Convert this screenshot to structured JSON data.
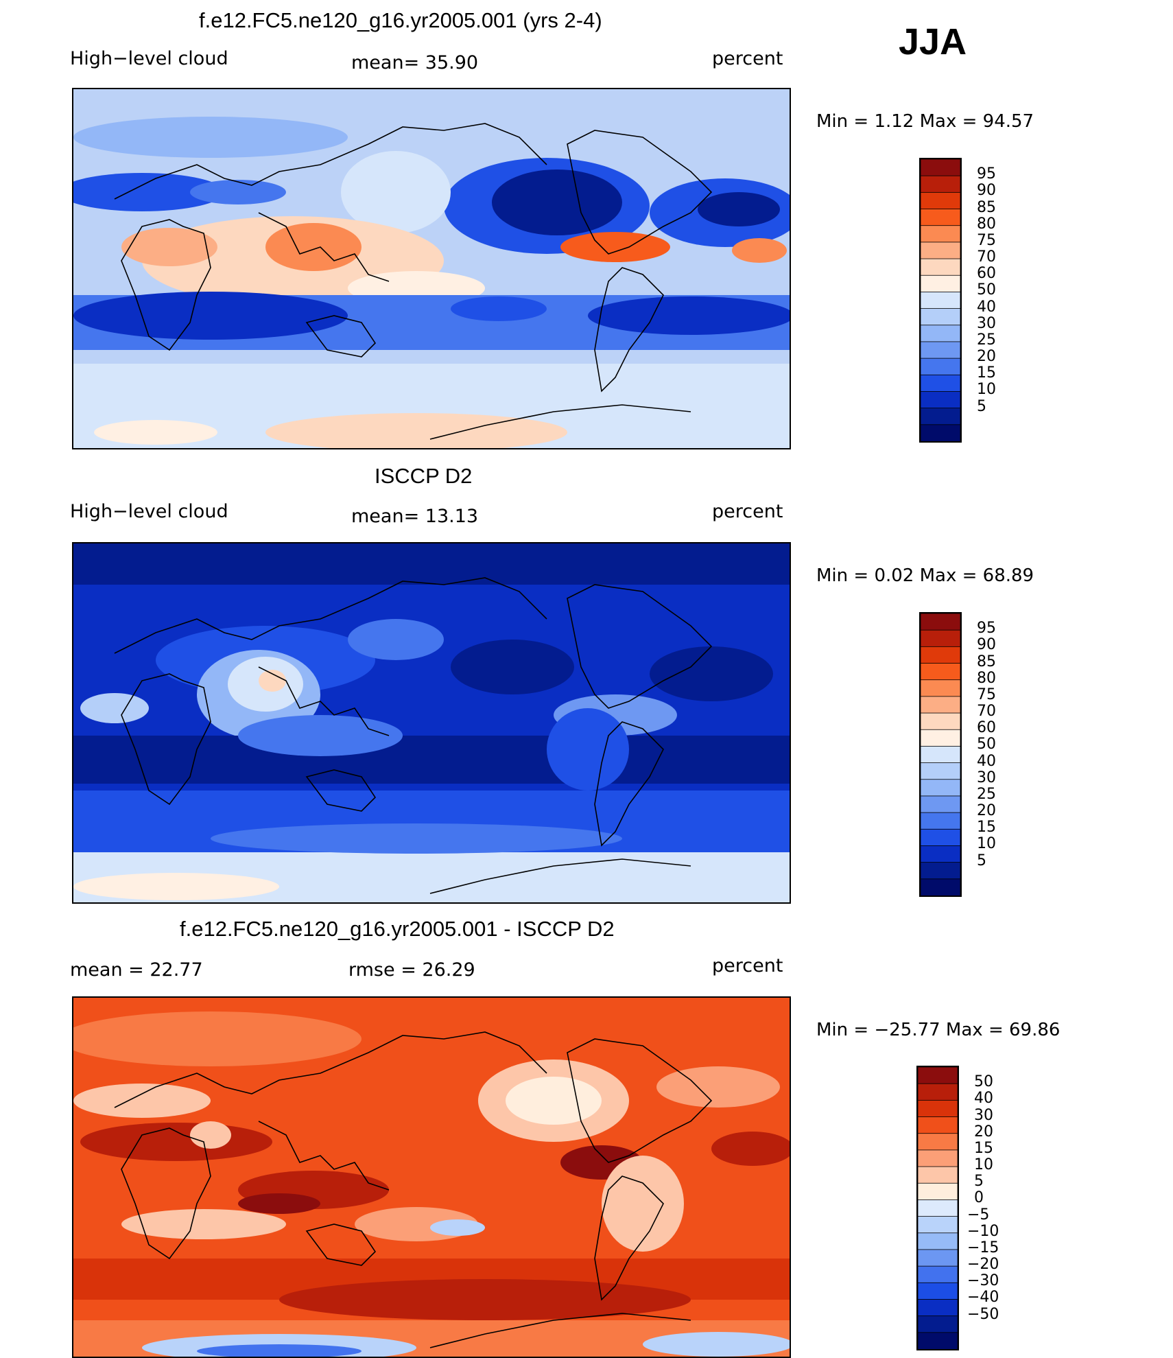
{
  "season": "JJA",
  "panels": [
    {
      "id": "model",
      "title": "f.e12.FC5.ne120_g16.yr2005.001 (yrs 2-4)",
      "left_label": "High−level cloud",
      "center_label": "mean=   35.90",
      "right_label": "percent",
      "minmax": "Min =    1.12 Max =   94.57",
      "min": 1.12,
      "max": 94.57,
      "mean": 35.9,
      "colors": [
        "#8b0d0d",
        "#b81f0a",
        "#e03a0a",
        "#f75b1c",
        "#fb8a52",
        "#fcae85",
        "#fdd8bf",
        "#fff0e3",
        "#d6e6fb",
        "#b4cff9",
        "#93b7f7",
        "#6e98f2",
        "#4576ee",
        "#1f50e6",
        "#0a2ec3",
        "#031c8f",
        "#000b6a"
      ],
      "ticks": [
        "95",
        "90",
        "85",
        "80",
        "75",
        "70",
        "60",
        "50",
        "40",
        "30",
        "25",
        "20",
        "15",
        "10",
        "5"
      ]
    },
    {
      "id": "obs",
      "title": "ISCCP D2",
      "left_label": "High−level cloud",
      "center_label": "mean=   13.13",
      "right_label": "percent",
      "minmax": "Min =    0.02 Max =   68.89",
      "min": 0.02,
      "max": 68.89,
      "mean": 13.13,
      "colors": [
        "#8b0d0d",
        "#b81f0a",
        "#e03a0a",
        "#f75b1c",
        "#fb8a52",
        "#fcae85",
        "#fdd8bf",
        "#fff0e3",
        "#d6e6fb",
        "#b4cff9",
        "#93b7f7",
        "#6e98f2",
        "#4576ee",
        "#1f50e6",
        "#0a2ec3",
        "#031c8f",
        "#000b6a"
      ],
      "ticks": [
        "95",
        "90",
        "85",
        "80",
        "75",
        "70",
        "60",
        "50",
        "40",
        "30",
        "25",
        "20",
        "15",
        "10",
        "5"
      ]
    },
    {
      "id": "diff",
      "title": "f.e12.FC5.ne120_g16.yr2005.001 - ISCCP D2",
      "left_label": "mean =   22.77",
      "center_label": "rmse =   26.29",
      "right_label": "percent",
      "minmax": "Min = −25.77 Max =   69.86",
      "min": -25.77,
      "max": 69.86,
      "mean": 22.77,
      "rmse": 26.29,
      "colors": [
        "#8b0d0d",
        "#b81f0a",
        "#d9330a",
        "#f0501a",
        "#f87a45",
        "#fb9f77",
        "#fdc6a9",
        "#ffeedd",
        "#ddeafc",
        "#b9d3fa",
        "#96bbf7",
        "#6c97f2",
        "#4272ee",
        "#1c4ee6",
        "#0a2ec3",
        "#031c8f",
        "#000b6a"
      ],
      "ticks": [
        "50",
        "40",
        "30",
        "20",
        "15",
        "10",
        "5",
        "0",
        "−5",
        "−10",
        "−15",
        "−20",
        "−30",
        "−40",
        "−50"
      ]
    }
  ],
  "chart_data": [
    {
      "type": "heatmap",
      "title": "f.e12.FC5.ne120_g16.yr2005.001 (yrs 2-4)",
      "variable": "High−level cloud",
      "units": "percent",
      "season": "JJA",
      "mean": 35.9,
      "min": 1.12,
      "max": 94.57,
      "contour_levels": [
        5,
        10,
        15,
        20,
        25,
        30,
        40,
        50,
        60,
        70,
        75,
        80,
        85,
        90,
        95
      ]
    },
    {
      "type": "heatmap",
      "title": "ISCCP D2",
      "variable": "High−level cloud",
      "units": "percent",
      "season": "JJA",
      "mean": 13.13,
      "min": 0.02,
      "max": 68.89,
      "contour_levels": [
        5,
        10,
        15,
        20,
        25,
        30,
        40,
        50,
        60,
        70,
        75,
        80,
        85,
        90,
        95
      ]
    },
    {
      "type": "heatmap",
      "title": "f.e12.FC5.ne120_g16.yr2005.001 - ISCCP D2",
      "units": "percent",
      "season": "JJA",
      "mean": 22.77,
      "rmse": 26.29,
      "min": -25.77,
      "max": 69.86,
      "contour_levels": [
        -50,
        -40,
        -30,
        -20,
        -15,
        -10,
        -5,
        0,
        5,
        10,
        15,
        20,
        30,
        40,
        50
      ]
    }
  ]
}
